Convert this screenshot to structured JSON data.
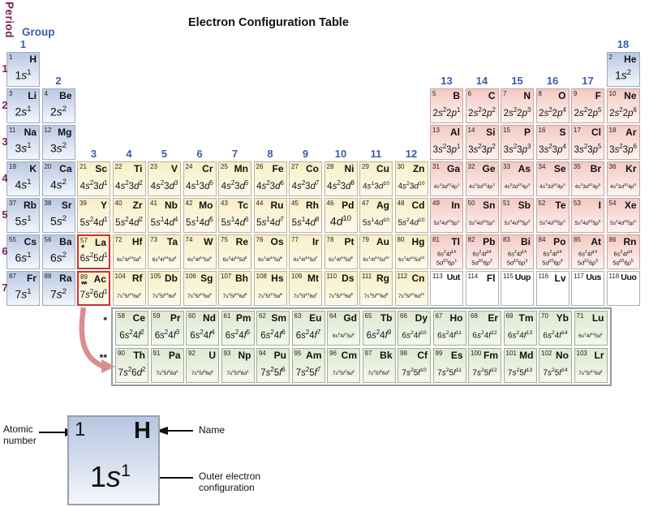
{
  "title": "Electron Configuration Table",
  "axis": {
    "period_label": "Period",
    "group_label": "Group"
  },
  "colors": {
    "period_label": "#7c2150",
    "group_label": "#3c5ba6",
    "s_block_top": "#bac8e3",
    "s_block_bottom": "#f3f6fb",
    "d_block_top": "#f8eec6",
    "d_block_bottom": "#fdfaec",
    "p_block_top": "#f4c9c2",
    "p_block_bottom": "#fdf3f1",
    "f_block_top": "#dfe8d0",
    "f_block_bottom": "#f4f7ee",
    "highlight_border": "#cf2f2f",
    "pointer_arrow": "#d98f90"
  },
  "periods": [
    "1",
    "2",
    "3",
    "4",
    "5",
    "6",
    "7"
  ],
  "groups": [
    {
      "label": "1",
      "col": 1,
      "above_period": 1
    },
    {
      "label": "2",
      "col": 2,
      "above_period": 2
    },
    {
      "label": "3",
      "col": 3,
      "above_period": 4
    },
    {
      "label": "4",
      "col": 4,
      "above_period": 4
    },
    {
      "label": "5",
      "col": 5,
      "above_period": 4
    },
    {
      "label": "6",
      "col": 6,
      "above_period": 4
    },
    {
      "label": "7",
      "col": 7,
      "above_period": 4
    },
    {
      "label": "8",
      "col": 8,
      "above_period": 4
    },
    {
      "label": "9",
      "col": 9,
      "above_period": 4
    },
    {
      "label": "10",
      "col": 10,
      "above_period": 4
    },
    {
      "label": "11",
      "col": 11,
      "above_period": 4
    },
    {
      "label": "12",
      "col": 12,
      "above_period": 4
    },
    {
      "label": "13",
      "col": 13,
      "above_period": 2
    },
    {
      "label": "14",
      "col": 14,
      "above_period": 2
    },
    {
      "label": "15",
      "col": 15,
      "above_period": 2
    },
    {
      "label": "16",
      "col": 16,
      "above_period": 2
    },
    {
      "label": "17",
      "col": 17,
      "above_period": 2
    },
    {
      "label": "18",
      "col": 18,
      "above_period": 1
    }
  ],
  "elements": [
    {
      "n": 1,
      "s": "H",
      "g": 1,
      "p": 1,
      "b": "s",
      "c": "1s^1"
    },
    {
      "n": 2,
      "s": "He",
      "g": 18,
      "p": 1,
      "b": "s",
      "c": "1s^2"
    },
    {
      "n": 3,
      "s": "Li",
      "g": 1,
      "p": 2,
      "b": "s",
      "c": "2s^1"
    },
    {
      "n": 4,
      "s": "Be",
      "g": 2,
      "p": 2,
      "b": "s",
      "c": "2s^2"
    },
    {
      "n": 5,
      "s": "B",
      "g": 13,
      "p": 2,
      "b": "p",
      "c": "2s^2 2p^1"
    },
    {
      "n": 6,
      "s": "C",
      "g": 14,
      "p": 2,
      "b": "p",
      "c": "2s^2 2p^2"
    },
    {
      "n": 7,
      "s": "N",
      "g": 15,
      "p": 2,
      "b": "p",
      "c": "2s^2 2p^3"
    },
    {
      "n": 8,
      "s": "O",
      "g": 16,
      "p": 2,
      "b": "p",
      "c": "2s^2 2p^4"
    },
    {
      "n": 9,
      "s": "F",
      "g": 17,
      "p": 2,
      "b": "p",
      "c": "2s^2 2p^5"
    },
    {
      "n": 10,
      "s": "Ne",
      "g": 18,
      "p": 2,
      "b": "p",
      "c": "2s^2 2p^6"
    },
    {
      "n": 11,
      "s": "Na",
      "g": 1,
      "p": 3,
      "b": "s",
      "c": "3s^1"
    },
    {
      "n": 12,
      "s": "Mg",
      "g": 2,
      "p": 3,
      "b": "s",
      "c": "3s^2"
    },
    {
      "n": 13,
      "s": "Al",
      "g": 13,
      "p": 3,
      "b": "p",
      "c": "3s^2 3p^1"
    },
    {
      "n": 14,
      "s": "Si",
      "g": 14,
      "p": 3,
      "b": "p",
      "c": "3s^2 3p^2"
    },
    {
      "n": 15,
      "s": "P",
      "g": 15,
      "p": 3,
      "b": "p",
      "c": "3s^2 3p^3"
    },
    {
      "n": 16,
      "s": "S",
      "g": 16,
      "p": 3,
      "b": "p",
      "c": "3s^2 3p^4"
    },
    {
      "n": 17,
      "s": "Cl",
      "g": 17,
      "p": 3,
      "b": "p",
      "c": "3s^2 3p^5"
    },
    {
      "n": 18,
      "s": "Ar",
      "g": 18,
      "p": 3,
      "b": "p",
      "c": "3s^2 3p^6"
    },
    {
      "n": 19,
      "s": "K",
      "g": 1,
      "p": 4,
      "b": "s",
      "c": "4s^1"
    },
    {
      "n": 20,
      "s": "Ca",
      "g": 2,
      "p": 4,
      "b": "s",
      "c": "4s^2"
    },
    {
      "n": 21,
      "s": "Sc",
      "g": 3,
      "p": 4,
      "b": "d",
      "c": "4s^2 3d^1"
    },
    {
      "n": 22,
      "s": "Ti",
      "g": 4,
      "p": 4,
      "b": "d",
      "c": "4s^2 3d^2"
    },
    {
      "n": 23,
      "s": "V",
      "g": 5,
      "p": 4,
      "b": "d",
      "c": "4s^2 3d^3"
    },
    {
      "n": 24,
      "s": "Cr",
      "g": 6,
      "p": 4,
      "b": "d",
      "c": "4s^1 3d^5"
    },
    {
      "n": 25,
      "s": "Mn",
      "g": 7,
      "p": 4,
      "b": "d",
      "c": "4s^2 3d^5"
    },
    {
      "n": 26,
      "s": "Fe",
      "g": 8,
      "p": 4,
      "b": "d",
      "c": "4s^2 3d^6"
    },
    {
      "n": 27,
      "s": "Co",
      "g": 9,
      "p": 4,
      "b": "d",
      "c": "4s^2 3d^7"
    },
    {
      "n": 28,
      "s": "Ni",
      "g": 10,
      "p": 4,
      "b": "d",
      "c": "4s^2 3d^8"
    },
    {
      "n": 29,
      "s": "Cu",
      "g": 11,
      "p": 4,
      "b": "d",
      "c": "4s^1 3d^10"
    },
    {
      "n": 30,
      "s": "Zn",
      "g": 12,
      "p": 4,
      "b": "d",
      "c": "4s^2 3d^10"
    },
    {
      "n": 31,
      "s": "Ga",
      "g": 13,
      "p": 4,
      "b": "p",
      "c": "4s^2 3d^10 4p^1"
    },
    {
      "n": 32,
      "s": "Ge",
      "g": 14,
      "p": 4,
      "b": "p",
      "c": "4s^2 3d^10 4p^2"
    },
    {
      "n": 33,
      "s": "As",
      "g": 15,
      "p": 4,
      "b": "p",
      "c": "4s^2 3d^10 4p^3"
    },
    {
      "n": 34,
      "s": "Se",
      "g": 16,
      "p": 4,
      "b": "p",
      "c": "4s^2 3d^10 4p^4"
    },
    {
      "n": 35,
      "s": "Br",
      "g": 17,
      "p": 4,
      "b": "p",
      "c": "4s^2 3d^10 4p^5"
    },
    {
      "n": 36,
      "s": "Kr",
      "g": 18,
      "p": 4,
      "b": "p",
      "c": "4s^2 3d^10 4p^6"
    },
    {
      "n": 37,
      "s": "Rb",
      "g": 1,
      "p": 5,
      "b": "s",
      "c": "5s^1"
    },
    {
      "n": 38,
      "s": "Sr",
      "g": 2,
      "p": 5,
      "b": "s",
      "c": "5s^2"
    },
    {
      "n": 39,
      "s": "Y",
      "g": 3,
      "p": 5,
      "b": "d",
      "c": "5s^2 4d^1"
    },
    {
      "n": 40,
      "s": "Zr",
      "g": 4,
      "p": 5,
      "b": "d",
      "c": "5s^2 4d^2"
    },
    {
      "n": 41,
      "s": "Nb",
      "g": 5,
      "p": 5,
      "b": "d",
      "c": "5s^1 4d^4"
    },
    {
      "n": 42,
      "s": "Mo",
      "g": 6,
      "p": 5,
      "b": "d",
      "c": "5s^1 4d^5"
    },
    {
      "n": 43,
      "s": "Tc",
      "g": 7,
      "p": 5,
      "b": "d",
      "c": "5s^1 4d^6"
    },
    {
      "n": 44,
      "s": "Ru",
      "g": 8,
      "p": 5,
      "b": "d",
      "c": "5s^1 4d^7"
    },
    {
      "n": 45,
      "s": "Rh",
      "g": 9,
      "p": 5,
      "b": "d",
      "c": "5s^1 4d^8"
    },
    {
      "n": 46,
      "s": "Pd",
      "g": 10,
      "p": 5,
      "b": "d",
      "c": "4d^10"
    },
    {
      "n": 47,
      "s": "Ag",
      "g": 11,
      "p": 5,
      "b": "d",
      "c": "5s^1 4d^10"
    },
    {
      "n": 48,
      "s": "Cd",
      "g": 12,
      "p": 5,
      "b": "d",
      "c": "5s^2 4d^10"
    },
    {
      "n": 49,
      "s": "In",
      "g": 13,
      "p": 5,
      "b": "p",
      "c": "5s^2 4d^10 5p^1"
    },
    {
      "n": 50,
      "s": "Sn",
      "g": 14,
      "p": 5,
      "b": "p",
      "c": "5s^2 4d^10 5p^2"
    },
    {
      "n": 51,
      "s": "Sb",
      "g": 15,
      "p": 5,
      "b": "p",
      "c": "5s^2 4d^10 5p^3"
    },
    {
      "n": 52,
      "s": "Te",
      "g": 16,
      "p": 5,
      "b": "p",
      "c": "5s^2 4d^10 5p^4"
    },
    {
      "n": 53,
      "s": "I",
      "g": 17,
      "p": 5,
      "b": "p",
      "c": "5s^2 4d^10 5p^5"
    },
    {
      "n": 54,
      "s": "Xe",
      "g": 18,
      "p": 5,
      "b": "p",
      "c": "5s^2 4d^10 5p^6"
    },
    {
      "n": 55,
      "s": "Cs",
      "g": 1,
      "p": 6,
      "b": "s",
      "c": "6s^1"
    },
    {
      "n": 56,
      "s": "Ba",
      "g": 2,
      "p": 6,
      "b": "s",
      "c": "6s^2"
    },
    {
      "n": 57,
      "s": "La",
      "g": 3,
      "p": 6,
      "b": "d",
      "c": "6s^2 5d^1",
      "r": true,
      "m": "*"
    },
    {
      "n": 72,
      "s": "Hf",
      "g": 4,
      "p": 6,
      "b": "d",
      "c": "6s^2 4f^14 5d^2"
    },
    {
      "n": 73,
      "s": "Ta",
      "g": 5,
      "p": 6,
      "b": "d",
      "c": "6s^2 4f^14 5d^3"
    },
    {
      "n": 74,
      "s": "W",
      "g": 6,
      "p": 6,
      "b": "d",
      "c": "6s^2 4f^14 5d^4"
    },
    {
      "n": 75,
      "s": "Re",
      "g": 7,
      "p": 6,
      "b": "d",
      "c": "6s^2 4f^14 5d^5"
    },
    {
      "n": 76,
      "s": "Os",
      "g": 8,
      "p": 6,
      "b": "d",
      "c": "6s^2 4f^14 5d^6"
    },
    {
      "n": 77,
      "s": "Ir",
      "g": 9,
      "p": 6,
      "b": "d",
      "c": "6s^2 4f^14 5d^7"
    },
    {
      "n": 78,
      "s": "Pt",
      "g": 10,
      "p": 6,
      "b": "d",
      "c": "6s^1 4f^14 5d^9"
    },
    {
      "n": 79,
      "s": "Au",
      "g": 11,
      "p": 6,
      "b": "d",
      "c": "6s^1 4f^14 5d^10"
    },
    {
      "n": 80,
      "s": "Hg",
      "g": 12,
      "p": 6,
      "b": "d",
      "c": "6s^2 4f^14 5d^10"
    },
    {
      "n": 81,
      "s": "Tl",
      "g": 13,
      "p": 6,
      "b": "p",
      "c": "6s^2 4f^14|5d^10 6p^1"
    },
    {
      "n": 82,
      "s": "Pb",
      "g": 14,
      "p": 6,
      "b": "p",
      "c": "6s^2 4f^14|5d^10 6p^2"
    },
    {
      "n": 83,
      "s": "Bi",
      "g": 15,
      "p": 6,
      "b": "p",
      "c": "6s^2 4f^14|5d^10 6p^3"
    },
    {
      "n": 84,
      "s": "Po",
      "g": 16,
      "p": 6,
      "b": "p",
      "c": "6s^2 4f^14|5d^10 6p^4"
    },
    {
      "n": 85,
      "s": "At",
      "g": 17,
      "p": 6,
      "b": "p",
      "c": "6s^2 4f^14|5d^10 6p^5"
    },
    {
      "n": 86,
      "s": "Rn",
      "g": 18,
      "p": 6,
      "b": "p",
      "c": "6s^2 4f^14|5d^10 6p^6"
    },
    {
      "n": 87,
      "s": "Fr",
      "g": 1,
      "p": 7,
      "b": "s",
      "c": "7s^1"
    },
    {
      "n": 88,
      "s": "Ra",
      "g": 2,
      "p": 7,
      "b": "s",
      "c": "7s^2"
    },
    {
      "n": 89,
      "s": "Ac",
      "g": 3,
      "p": 7,
      "b": "d",
      "c": "7s^2 6d^1",
      "r": true,
      "m": "**"
    },
    {
      "n": 104,
      "s": "Rf",
      "g": 4,
      "p": 7,
      "b": "d",
      "c": "7s^2 5f^14 6d^2"
    },
    {
      "n": 105,
      "s": "Db",
      "g": 5,
      "p": 7,
      "b": "d",
      "c": "7s^2 5f^14 6d^3"
    },
    {
      "n": 106,
      "s": "Sg",
      "g": 6,
      "p": 7,
      "b": "d",
      "c": "7s^2 5f^14 6d^4"
    },
    {
      "n": 107,
      "s": "Bh",
      "g": 7,
      "p": 7,
      "b": "d",
      "c": "7s^2 5f^14 6d^5"
    },
    {
      "n": 108,
      "s": "Hs",
      "g": 8,
      "p": 7,
      "b": "d",
      "c": "7s^2 5f^14 6d^6"
    },
    {
      "n": 109,
      "s": "Mt",
      "g": 9,
      "p": 7,
      "b": "d",
      "c": "7s^2 5f^14 6d^7"
    },
    {
      "n": 110,
      "s": "Ds",
      "g": 10,
      "p": 7,
      "b": "d",
      "c": "7s^2 5f^14 6d^8"
    },
    {
      "n": 111,
      "s": "Rg",
      "g": 11,
      "p": 7,
      "b": "d",
      "c": "7s^2 5f^14 6d^9"
    },
    {
      "n": 112,
      "s": "Cn",
      "g": 12,
      "p": 7,
      "b": "d",
      "c": "7s^2 5f^14 6d^10"
    },
    {
      "n": 113,
      "s": "Uut",
      "g": 13,
      "p": 7,
      "b": "u",
      "c": ""
    },
    {
      "n": 114,
      "s": "Fl",
      "g": 14,
      "p": 7,
      "b": "u",
      "c": ""
    },
    {
      "n": 115,
      "s": "Uup",
      "g": 15,
      "p": 7,
      "b": "u",
      "c": ""
    },
    {
      "n": 116,
      "s": "Lv",
      "g": 16,
      "p": 7,
      "b": "u",
      "c": ""
    },
    {
      "n": 117,
      "s": "Uus",
      "g": 17,
      "p": 7,
      "b": "u",
      "c": ""
    },
    {
      "n": 118,
      "s": "Uuo",
      "g": 18,
      "p": 7,
      "b": "u",
      "c": ""
    }
  ],
  "fblock": {
    "marks": [
      "*",
      "**"
    ],
    "lanthanides": [
      {
        "n": 58,
        "s": "Ce",
        "b": "f",
        "c": "6s^2 4f^2"
      },
      {
        "n": 59,
        "s": "Pr",
        "b": "f",
        "c": "6s^2 4f^3"
      },
      {
        "n": 60,
        "s": "Nd",
        "b": "f",
        "c": "6s^2 4f^4"
      },
      {
        "n": 61,
        "s": "Pm",
        "b": "f",
        "c": "6s^2 4f^5"
      },
      {
        "n": 62,
        "s": "Sm",
        "b": "f",
        "c": "6s^2 4f^6"
      },
      {
        "n": 63,
        "s": "Eu",
        "b": "f",
        "c": "6s^2 4f^7"
      },
      {
        "n": 64,
        "s": "Gd",
        "b": "f",
        "c": "6s^2 4f^7 5d^1"
      },
      {
        "n": 65,
        "s": "Tb",
        "b": "f",
        "c": "6s^2 4f^9"
      },
      {
        "n": 66,
        "s": "Dy",
        "b": "f",
        "c": "6s^2 4f^10"
      },
      {
        "n": 67,
        "s": "Ho",
        "b": "f",
        "c": "6s^2 4f^11"
      },
      {
        "n": 68,
        "s": "Er",
        "b": "f",
        "c": "6s^2 4f^12"
      },
      {
        "n": 69,
        "s": "Tm",
        "b": "f",
        "c": "6s^2 4f^13"
      },
      {
        "n": 70,
        "s": "Yb",
        "b": "f",
        "c": "6s^2 4f^14"
      },
      {
        "n": 71,
        "s": "Lu",
        "b": "f",
        "c": "6s^2 4f^14 5d^1"
      }
    ],
    "actinides": [
      {
        "n": 90,
        "s": "Th",
        "b": "f",
        "c": "7s^2 6d^2"
      },
      {
        "n": 91,
        "s": "Pa",
        "b": "f",
        "c": "7s^2 5f^2 6d^1"
      },
      {
        "n": 92,
        "s": "U",
        "b": "f",
        "c": "7s^2 5f^3 6d^1"
      },
      {
        "n": 93,
        "s": "Np",
        "b": "f",
        "c": "7s^2 5f^4 6d^1"
      },
      {
        "n": 94,
        "s": "Pu",
        "b": "f",
        "c": "7s^2 5f^6"
      },
      {
        "n": 95,
        "s": "Am",
        "b": "f",
        "c": "7s^2 5f^7"
      },
      {
        "n": 96,
        "s": "Cm",
        "b": "f",
        "c": "7s^2 5f^7 6d^1"
      },
      {
        "n": 97,
        "s": "Bk",
        "b": "f",
        "c": "7s^2 5f^8 6d^1"
      },
      {
        "n": 98,
        "s": "Cf",
        "b": "f",
        "c": "7s^2 5f^10"
      },
      {
        "n": 99,
        "s": "Es",
        "b": "f",
        "c": "7s^2 5f^11"
      },
      {
        "n": 100,
        "s": "Fm",
        "b": "f",
        "c": "7s^2 5f^12"
      },
      {
        "n": 101,
        "s": "Md",
        "b": "f",
        "c": "7s^2 5f^13"
      },
      {
        "n": 102,
        "s": "No",
        "b": "f",
        "c": "7s^2 5f^14"
      },
      {
        "n": 103,
        "s": "Lr",
        "b": "f",
        "c": "7s^2 5f^14 6d^1"
      }
    ]
  },
  "legend": {
    "atomic_number_label": "Atomic number",
    "name_label": "Name",
    "config_label": "Outer electron configuration",
    "cell": {
      "num": "1",
      "sym": "H",
      "config": "1s^1"
    }
  }
}
